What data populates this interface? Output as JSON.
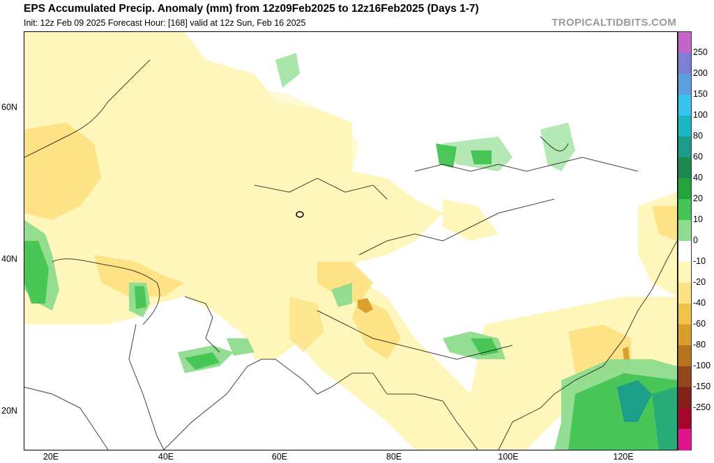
{
  "header": {
    "title": "EPS Accumulated Precip. Anomaly (mm) from 12z09Feb2025 to 12z16Feb2025 (Days 1-7)",
    "subtitle": "Init: 12z Feb 09 2025   Forecast Hour: [168]   valid at 12z Sun, Feb 16 2025",
    "brand": "TROPICALTIDBITS.COM"
  },
  "axes": {
    "lat_labels": [
      "60N",
      "40N",
      "20N"
    ],
    "lon_labels": [
      "20E",
      "40E",
      "60E",
      "80E",
      "100E",
      "120E"
    ]
  },
  "colorbar": {
    "labels": [
      "250",
      "200",
      "150",
      "100",
      "80",
      "60",
      "40",
      "20",
      "10",
      "0",
      "-10",
      "-20",
      "-40",
      "-60",
      "-80",
      "-100",
      "-150",
      "-250"
    ],
    "colors": [
      "#c264c8",
      "#7b7fd6",
      "#5b9fe0",
      "#35c3f0",
      "#19b7c3",
      "#1b9c8c",
      "#1a8a4e",
      "#24a53b",
      "#43c453",
      "#8fdc8f",
      "#ffffff",
      "#fff6b8",
      "#fde283",
      "#f0c247",
      "#d89d2a",
      "#b8741c",
      "#94471c",
      "#84201a",
      "#a4072a",
      "#e0158c"
    ]
  }
}
